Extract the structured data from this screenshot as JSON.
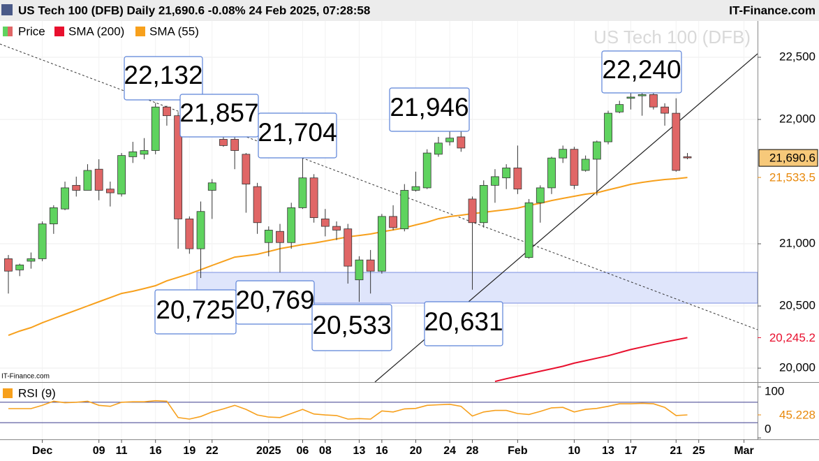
{
  "chart_data": [
    {
      "type": "candlestick",
      "title": "US Tech 100 (DFB) Daily 21,690.6 -0.08% 24 Feb 2025, 07:28:58",
      "source": "IT-Finance.com",
      "watermark": "US Tech 100 (DFB)",
      "price_label": "Price",
      "up_color": "#5fd35f",
      "down_color": "#e06666",
      "open": [
        20880,
        20790,
        20860,
        20880,
        21160,
        21280,
        21470,
        21430,
        21600,
        21440,
        21400,
        21700,
        21720,
        21750,
        22100,
        22030,
        21200,
        20960,
        21430,
        21840,
        21840,
        21720,
        21460,
        21010,
        21100,
        21010,
        21290,
        21530,
        21200,
        21140,
        21120,
        20710,
        20870,
        20780,
        21220,
        21120,
        21430,
        21450,
        21720,
        21820,
        21860,
        21360,
        21170,
        21470,
        21530,
        21610,
        20890,
        21330,
        21450,
        21690,
        21760,
        21590,
        21680,
        21820,
        22060,
        22170,
        22190,
        22200,
        22100,
        22050,
        21700
      ],
      "high": [
        20910,
        20840,
        20930,
        21180,
        21310,
        21500,
        21540,
        21640,
        21680,
        21500,
        21730,
        21820,
        21850,
        22132,
        22110,
        22060,
        21220,
        21340,
        21520,
        21857,
        21860,
        21730,
        21490,
        21140,
        21160,
        21330,
        21704,
        21560,
        21280,
        21180,
        21160,
        20900,
        20950,
        21240,
        21310,
        21480,
        21580,
        21760,
        21860,
        21946,
        21920,
        21380,
        21510,
        21600,
        21640,
        21790,
        21360,
        21470,
        21700,
        21790,
        21780,
        21710,
        21830,
        22070,
        22150,
        22220,
        22240,
        22230,
        22130,
        22170,
        21730
      ],
      "low": [
        20600,
        20740,
        20800,
        20860,
        21080,
        21270,
        21380,
        21430,
        21350,
        21300,
        21380,
        21650,
        21680,
        21720,
        21950,
        20960,
        20920,
        20725,
        21200,
        21780,
        21600,
        21250,
        21080,
        20900,
        20769,
        20960,
        21280,
        21170,
        21060,
        21030,
        20680,
        20533,
        20600,
        20760,
        21110,
        21100,
        21420,
        21440,
        21700,
        21790,
        21740,
        20631,
        21130,
        21330,
        21440,
        21400,
        20880,
        21170,
        21400,
        21650,
        21440,
        21580,
        21390,
        21800,
        22050,
        22080,
        22030,
        22080,
        21950,
        21580,
        21680
      ],
      "close": [
        20780,
        20830,
        20880,
        21160,
        21290,
        21450,
        21430,
        21590,
        21430,
        21410,
        21710,
        21740,
        21750,
        22100,
        22030,
        21200,
        20960,
        21260,
        21490,
        21790,
        21750,
        21480,
        21170,
        21110,
        21010,
        21290,
        21530,
        21210,
        21140,
        21110,
        20820,
        20870,
        20780,
        21220,
        21130,
        21430,
        21460,
        21730,
        21810,
        21850,
        21770,
        21170,
        21470,
        21540,
        21610,
        21440,
        21330,
        21450,
        21690,
        21760,
        21470,
        21680,
        21820,
        22050,
        22120,
        22180,
        22200,
        22100,
        22050,
        21590,
        21690.6
      ],
      "series": [
        {
          "name": "SMA (200)",
          "color": "#e8102e",
          "values": [
            null,
            null,
            null,
            null,
            null,
            null,
            null,
            null,
            null,
            null,
            null,
            null,
            null,
            null,
            null,
            null,
            null,
            null,
            null,
            null,
            null,
            null,
            null,
            null,
            null,
            null,
            null,
            null,
            null,
            null,
            null,
            null,
            null,
            null,
            null,
            null,
            null,
            null,
            null,
            null,
            null,
            null,
            null,
            19893,
            19915,
            19935,
            19955,
            19975,
            19995,
            20015,
            20040,
            20060,
            20080,
            20100,
            20125,
            20150,
            20170,
            20190,
            20210,
            20228,
            20245.2
          ]
        },
        {
          "name": "SMA (55)",
          "color": "#f7a01c",
          "values": [
            20264,
            20298,
            20326,
            20365,
            20399,
            20433,
            20466,
            20500,
            20534,
            20567,
            20601,
            20618,
            20640,
            20663,
            20702,
            20730,
            20758,
            20792,
            20826,
            20859,
            20893,
            20904,
            20916,
            20938,
            20961,
            20977,
            20994,
            21006,
            21022,
            21039,
            21056,
            21067,
            21079,
            21096,
            21112,
            21129,
            21152,
            21174,
            21202,
            21219,
            21230,
            21242,
            21253,
            21264,
            21275,
            21287,
            21309,
            21326,
            21348,
            21365,
            21382,
            21399,
            21410,
            21433,
            21455,
            21478,
            21494,
            21506,
            21517,
            21523,
            21533.5
          ]
        }
      ],
      "price_tags": [
        {
          "value": 21690.6,
          "label": "21,690.6",
          "color": "#000000"
        },
        {
          "value": 21533.5,
          "label": "21,533.5",
          "color": "#e8890c"
        },
        {
          "value": 20245.2,
          "label": "20,245.2",
          "color": "#e8102e"
        }
      ],
      "annotations": [
        "22,132",
        "21,857",
        "21,704",
        "21,946",
        "22,240",
        "20,725",
        "20,769",
        "20,533",
        "20,631"
      ],
      "ylim": [
        19888,
        22792
      ],
      "yticks": [
        {
          "value": 20000,
          "label": "20,000"
        },
        {
          "value": 20500,
          "label": "20,500"
        },
        {
          "value": 21000,
          "label": "21,000"
        },
        {
          "value": 22000,
          "label": "22,000"
        },
        {
          "value": 22500,
          "label": "22,500"
        }
      ],
      "xlim": [
        -0.74,
        66.2
      ],
      "xticks": [
        {
          "value": 3,
          "label": "Dec"
        },
        {
          "value": 8,
          "label": "09"
        },
        {
          "value": 10,
          "label": "11"
        },
        {
          "value": 13,
          "label": "16"
        },
        {
          "value": 16,
          "label": "19"
        },
        {
          "value": 18,
          "label": "22"
        },
        {
          "value": 23,
          "label": "2025"
        },
        {
          "value": 26,
          "label": "06"
        },
        {
          "value": 28,
          "label": "08"
        },
        {
          "value": 31,
          "label": "13"
        },
        {
          "value": 33,
          "label": "16"
        },
        {
          "value": 36,
          "label": "20"
        },
        {
          "value": 39,
          "label": "24"
        },
        {
          "value": 41,
          "label": "28"
        },
        {
          "value": 45,
          "label": "Feb"
        },
        {
          "value": 50,
          "label": "10"
        },
        {
          "value": 53,
          "label": "13"
        },
        {
          "value": 55,
          "label": "17"
        },
        {
          "value": 59,
          "label": "21"
        },
        {
          "value": 61,
          "label": "25"
        },
        {
          "value": 65,
          "label": "Mar"
        }
      ],
      "grid": true
    },
    {
      "type": "line",
      "series": [
        {
          "name": "RSI (9)",
          "color": "#f7a01c",
          "values": [
            57.5,
            57.5,
            57.5,
            64,
            72,
            69,
            70,
            72,
            64,
            62,
            70,
            71,
            71,
            73,
            72,
            40,
            37,
            42,
            51,
            57,
            64,
            56,
            45,
            41,
            40,
            48,
            56,
            47,
            45,
            44,
            37,
            38,
            37,
            53,
            51,
            57,
            58,
            64,
            65,
            66,
            62,
            43,
            51,
            54,
            54,
            48,
            46,
            52,
            59,
            60,
            51,
            56,
            58,
            62,
            67,
            67,
            68,
            67,
            60,
            44,
            45.228
          ]
        }
      ],
      "price_tags": [
        {
          "value": 45.228,
          "label": "45.228",
          "color": "#e8890c"
        }
      ],
      "levels": [
        70,
        30
      ],
      "ylim": [
        0,
        100
      ],
      "yticks": [
        0,
        100
      ]
    }
  ]
}
